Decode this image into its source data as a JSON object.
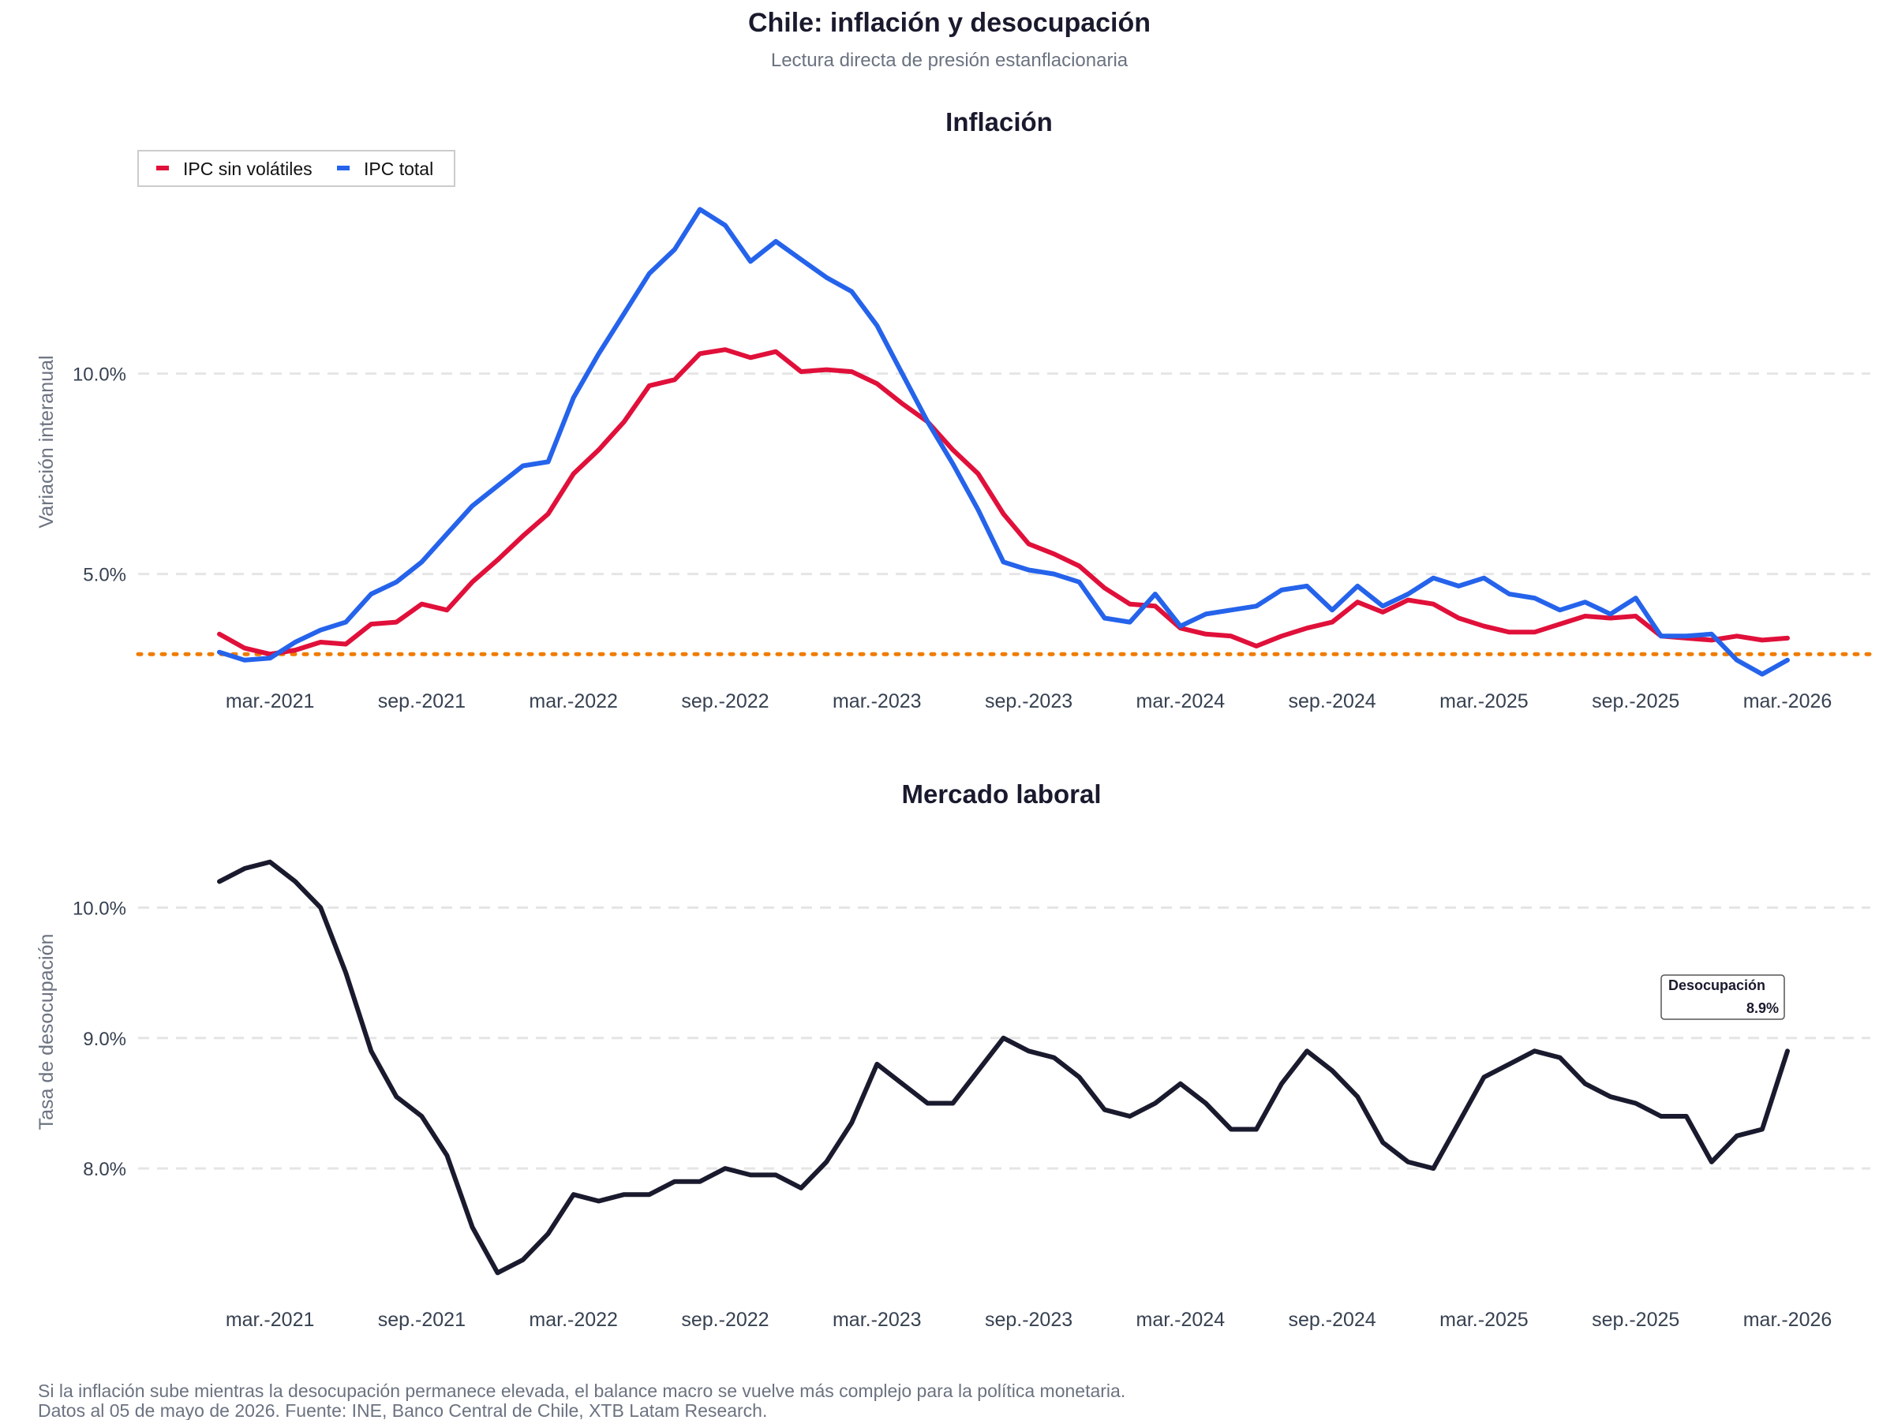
{
  "title": "Chile: inflación y desocupación",
  "subtitle": "Lectura directa de presión estanflacionaria",
  "footer_lines": [
    "Si la inflación sube mientras la desocupación permanece elevada, el balance macro se vuelve más complejo para la política monetaria.",
    "Datos al 05 de mayo de 2026. Fuente: INE, Banco Central de Chile, XTB Latam Research."
  ],
  "colors": {
    "ipc_sin_volatiles": "#e0103a",
    "ipc_total": "#2563eb",
    "desocupacion": "#1a1a2e",
    "target": "#f07c00",
    "grid": "#e5e5e5"
  },
  "chart_data": [
    {
      "type": "line",
      "title": "Inflación",
      "xlabel": "",
      "ylabel": "Variación interanual",
      "x_start": "2021-01",
      "x_end": "2026-03",
      "x_ticks": [
        "mar.-2021",
        "sep.-2021",
        "mar.-2022",
        "sep.-2022",
        "mar.-2023",
        "sep.-2023",
        "mar.-2024",
        "sep.-2024",
        "mar.-2025",
        "sep.-2025",
        "mar.-2026"
      ],
      "y_ticks": [
        "5.0%",
        "10.0%"
      ],
      "y_tick_values": [
        5,
        10
      ],
      "ylim": [
        2.0,
        14.6
      ],
      "grid": "horizontal dashed",
      "legend_position": "top-left",
      "reference_line": {
        "value": 3.0,
        "style": "dotted"
      },
      "series": [
        {
          "name": "IPC sin volátiles",
          "values": [
            3.5,
            3.15,
            3.0,
            3.1,
            3.3,
            3.25,
            3.75,
            3.8,
            4.25,
            4.1,
            4.8,
            5.35,
            5.95,
            6.5,
            7.5,
            8.1,
            8.8,
            9.7,
            9.85,
            10.5,
            10.6,
            10.4,
            10.55,
            10.05,
            10.1,
            10.05,
            9.75,
            9.25,
            8.8,
            8.1,
            7.5,
            6.5,
            5.75,
            5.5,
            5.2,
            4.65,
            4.25,
            4.2,
            3.65,
            3.5,
            3.45,
            3.2,
            3.45,
            3.65,
            3.8,
            4.3,
            4.05,
            4.35,
            4.25,
            3.9,
            3.7,
            3.55,
            3.55,
            3.75,
            3.95,
            3.9,
            3.95,
            3.45,
            3.4,
            3.35,
            3.45,
            3.35,
            3.4
          ]
        },
        {
          "name": "IPC total",
          "values": [
            3.05,
            2.85,
            2.9,
            3.3,
            3.6,
            3.8,
            4.5,
            4.8,
            5.3,
            6.0,
            6.7,
            7.2,
            7.7,
            7.8,
            9.4,
            10.5,
            11.5,
            12.5,
            13.1,
            14.1,
            13.7,
            12.8,
            13.3,
            12.85,
            12.4,
            12.05,
            11.2,
            10.0,
            8.8,
            7.75,
            6.6,
            5.3,
            5.1,
            5.0,
            4.8,
            3.9,
            3.8,
            4.5,
            3.7,
            4.0,
            4.1,
            4.2,
            4.6,
            4.7,
            4.1,
            4.7,
            4.2,
            4.5,
            4.9,
            4.7,
            4.9,
            4.5,
            4.4,
            4.1,
            4.3,
            4.0,
            4.4,
            3.45,
            3.45,
            3.5,
            2.85,
            2.5,
            2.85
          ]
        }
      ]
    },
    {
      "type": "line",
      "title": "Mercado laboral",
      "xlabel": "",
      "ylabel": "Tasa de desocupación",
      "x_start": "2021-01",
      "x_end": "2026-03",
      "x_ticks": [
        "mar.-2021",
        "sep.-2021",
        "mar.-2022",
        "sep.-2022",
        "mar.-2023",
        "sep.-2023",
        "mar.-2024",
        "sep.-2024",
        "mar.-2025",
        "sep.-2025",
        "mar.-2026"
      ],
      "y_ticks": [
        "8.0%",
        "9.0%",
        "10.0%"
      ],
      "y_tick_values": [
        8,
        9,
        10
      ],
      "ylim": [
        6.9,
        10.65
      ],
      "grid": "horizontal dashed",
      "annotation": {
        "label": "Desocupación",
        "value_text": "8.9%"
      },
      "series": [
        {
          "name": "Desocupación",
          "values": [
            10.2,
            10.3,
            10.35,
            10.2,
            10.0,
            9.5,
            8.9,
            8.55,
            8.4,
            8.1,
            7.55,
            7.2,
            7.3,
            7.5,
            7.8,
            7.75,
            7.8,
            7.8,
            7.9,
            7.9,
            8.0,
            7.95,
            7.95,
            7.85,
            8.05,
            8.35,
            8.8,
            8.65,
            8.5,
            8.5,
            8.75,
            9.0,
            8.9,
            8.85,
            8.7,
            8.45,
            8.4,
            8.5,
            8.65,
            8.5,
            8.3,
            8.3,
            8.65,
            8.9,
            8.75,
            8.55,
            8.2,
            8.05,
            8.0,
            8.35,
            8.7,
            8.8,
            8.9,
            8.85,
            8.65,
            8.55,
            8.5,
            8.4,
            8.4,
            8.05,
            8.25,
            8.3,
            8.9
          ]
        }
      ]
    }
  ]
}
